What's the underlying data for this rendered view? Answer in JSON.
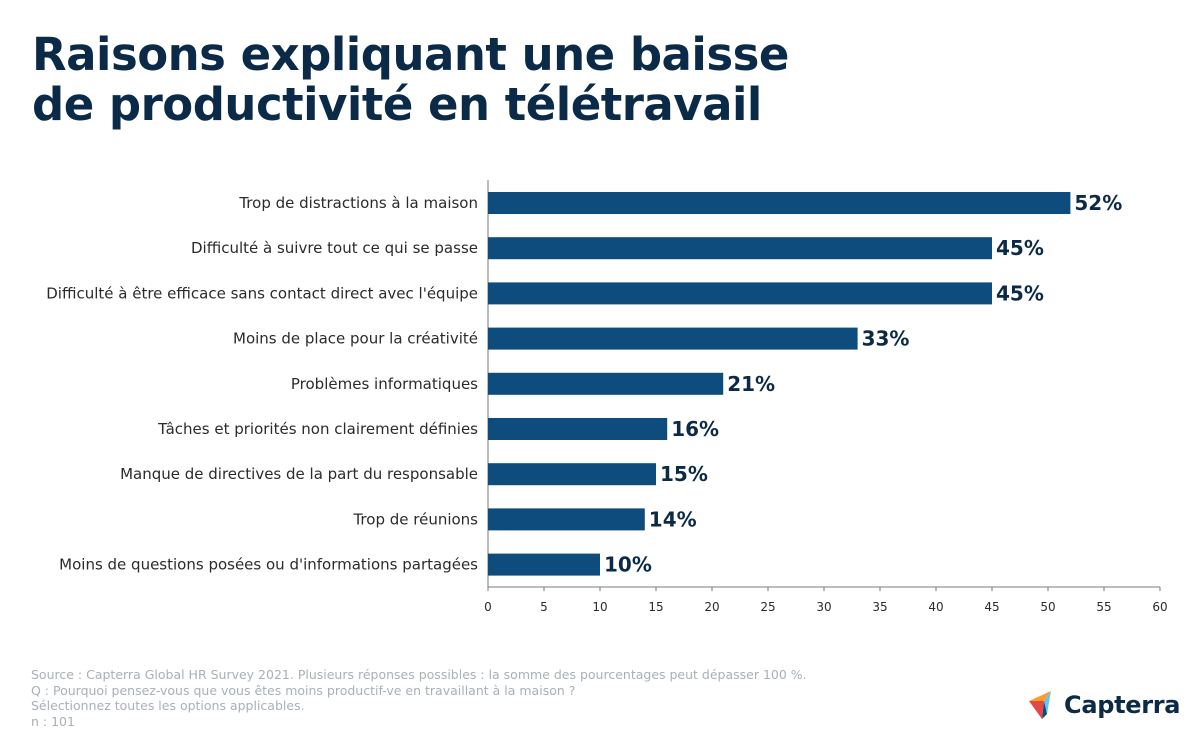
{
  "title": {
    "line1": "Raisons expliquant une baisse",
    "line2": "de productivité en télétravail"
  },
  "chart_data": {
    "type": "bar",
    "orientation": "horizontal",
    "title": "Raisons expliquant une baisse de productivité en télétravail",
    "categories": [
      "Trop de distractions à la maison",
      "Difficulté à suivre tout ce qui se passe",
      "Difficulté à être efficace sans contact direct avec l'équipe",
      "Moins de place pour la créativité",
      "Problèmes informatiques",
      "Tâches et priorités non clairement définies",
      "Manque de directives de la part du responsable",
      "Trop de réunions",
      "Moins de questions posées ou d'informations partagées"
    ],
    "values": [
      52,
      45,
      45,
      33,
      21,
      16,
      15,
      14,
      10
    ],
    "value_labels": [
      "52%",
      "45%",
      "45%",
      "33%",
      "21%",
      "16%",
      "15%",
      "14%",
      "10%"
    ],
    "xlim": [
      0,
      60
    ],
    "xticks": [
      0,
      5,
      10,
      15,
      20,
      25,
      30,
      35,
      40,
      45,
      50,
      55,
      60
    ],
    "xlabel": "",
    "ylabel": "",
    "bar_color": "#0d4c7c",
    "grid": false
  },
  "footer": {
    "source": "Source : Capterra Global HR Survey 2021. Plusieurs réponses possibles : la somme des pourcentages peut dépasser 100 %.",
    "question": "Q : Pourquoi pensez-vous que vous êtes moins productif-ve en travaillant à la maison ?",
    "instruction": "Sélectionnez toutes les options applicables.",
    "sample": "n : 101"
  },
  "logo": {
    "text": "Capterra",
    "icon": "capterra-logo-icon"
  },
  "colors": {
    "title": "#0b2a47",
    "bar": "#0d4c7c",
    "footer": "#a9b0b7",
    "logo_orange": "#ff9d28",
    "logo_blue": "#68c5ed",
    "logo_navy": "#044d80",
    "logo_red": "#e54747"
  }
}
